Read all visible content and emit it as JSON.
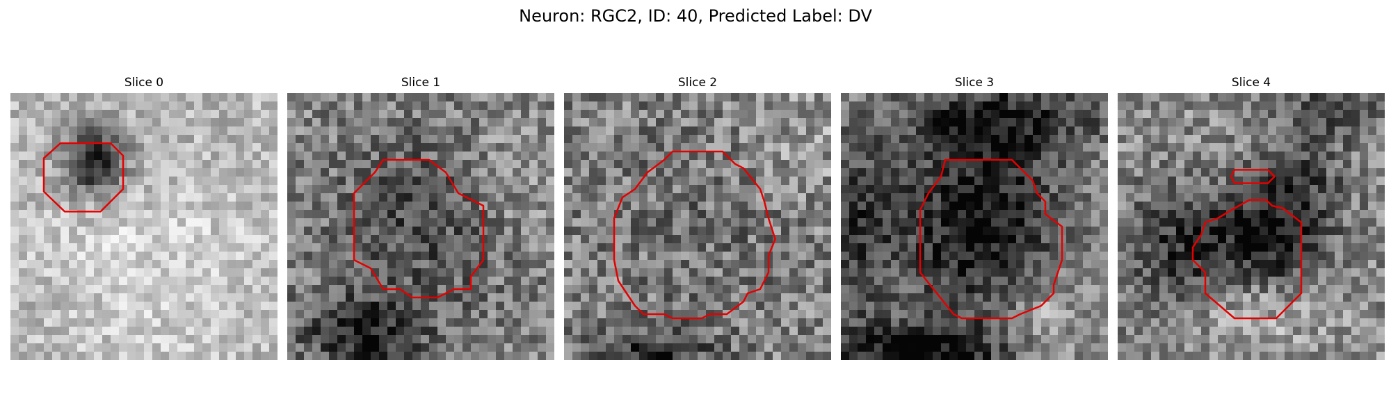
{
  "figure": {
    "title": "Neuron: RGC2, ID: 40, Predicted Label: DV",
    "contour_color": "#e50000",
    "panels": [
      {
        "title": "Slice 0",
        "image": "grayscale-microscopy-slice",
        "contour": "red-roi-outline"
      },
      {
        "title": "Slice 1",
        "image": "grayscale-microscopy-slice",
        "contour": "red-roi-outline"
      },
      {
        "title": "Slice 2",
        "image": "grayscale-microscopy-slice",
        "contour": "red-roi-outline"
      },
      {
        "title": "Slice 3",
        "image": "grayscale-microscopy-slice",
        "contour": "red-roi-outline"
      },
      {
        "title": "Slice 4",
        "image": "grayscale-microscopy-slice",
        "contour": "red-roi-outline"
      }
    ]
  }
}
